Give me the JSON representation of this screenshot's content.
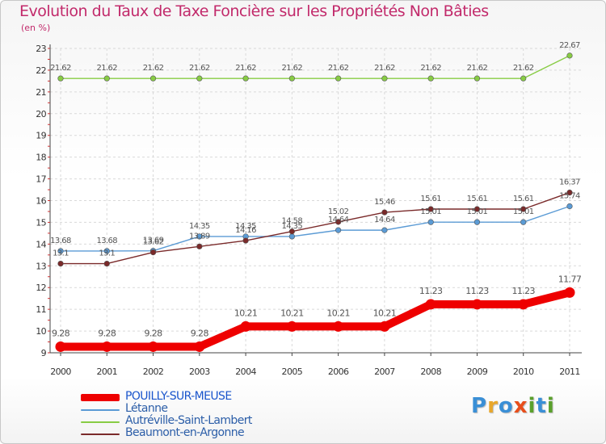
{
  "chart_data": {
    "type": "line",
    "title": "Evolution du Taux de Taxe Foncière sur les Propriétés Non Bâties",
    "ylabel": "(en %)",
    "xlabel": "",
    "ylim": [
      9,
      23
    ],
    "yticks": [
      9,
      10,
      11,
      12,
      13,
      14,
      15,
      16,
      17,
      18,
      19,
      20,
      21,
      22,
      23
    ],
    "x": [
      "2000",
      "2001",
      "2002",
      "2003",
      "2004",
      "2005",
      "2006",
      "2007",
      "2008",
      "2009",
      "2010",
      "2011"
    ],
    "legend_position": "bottom-left",
    "series": [
      {
        "name": "POUILLY-SUR-MEUSE",
        "color": "#ee0000",
        "emphasis": true,
        "values": [
          9.28,
          9.28,
          9.28,
          9.28,
          10.21,
          10.21,
          10.21,
          10.21,
          11.23,
          11.23,
          11.23,
          11.77
        ],
        "labels": [
          "9.28",
          "9.28",
          "9.28",
          "9.28",
          "10.21",
          "10.21",
          "10.21",
          "10.21",
          "11.23",
          "11.23",
          "11.23",
          "11.77"
        ]
      },
      {
        "name": "Létanne",
        "color": "#5b9bd5",
        "emphasis": false,
        "values": [
          13.68,
          13.68,
          13.69,
          14.35,
          14.35,
          14.35,
          14.64,
          14.64,
          15.01,
          15.01,
          15.01,
          15.74
        ],
        "labels": [
          "13.68",
          "13.68",
          "13.69",
          "14.35",
          "14.35",
          "14.35",
          "14.64",
          "14.64",
          "15.01",
          "15.01",
          "15.01",
          "15.74"
        ]
      },
      {
        "name": "Autréville-Saint-Lambert",
        "color": "#88cc44",
        "emphasis": false,
        "values": [
          21.62,
          21.62,
          21.62,
          21.62,
          21.62,
          21.62,
          21.62,
          21.62,
          21.62,
          21.62,
          21.62,
          22.67
        ],
        "labels": [
          "21.62",
          "21.62",
          "21.62",
          "21.62",
          "21.62",
          "21.62",
          "21.62",
          "21.62",
          "21.62",
          "21.62",
          "21.62",
          "22.67"
        ]
      },
      {
        "name": "Beaumont-en-Argonne",
        "color": "#7a2a2a",
        "emphasis": false,
        "values": [
          13.1,
          13.1,
          13.62,
          13.89,
          14.16,
          14.58,
          15.02,
          15.46,
          15.61,
          15.61,
          15.61,
          16.37
        ],
        "labels": [
          "13.1",
          "13.1",
          "13.62",
          "13.89",
          "14.16",
          "14.58",
          "15.02",
          "15.46",
          "15.61",
          "15.61",
          "15.61",
          "16.37"
        ]
      }
    ]
  },
  "logo": {
    "text": "Proxiti"
  }
}
